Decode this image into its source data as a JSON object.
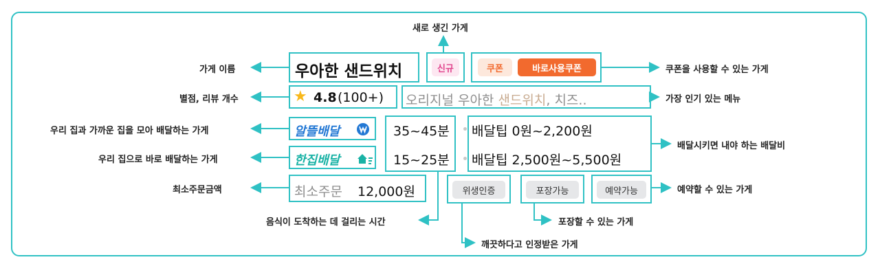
{
  "colors": {
    "accent": "#2fc1c4",
    "new_badge": "#e0428c",
    "coupon": "#f26a2e",
    "star": "#f8b81b",
    "logo_blue": "#2378d4",
    "logo_teal": "#19b2a5"
  },
  "card": {
    "store_name": "우아한 샌드위치",
    "badge_new": "신규",
    "coupon_label": "쿠폰",
    "coupon_instant": "바로사용쿠폰",
    "rating": "4.8",
    "review_count": "(100+)",
    "menu_plain": "오리지널 우아한 ",
    "menu_highlight": "샌드위치",
    "menu_rest": ", 치즈..",
    "logo_alddeul": "알뜰배달",
    "logo_hanjip": "한집배달",
    "time_alddeul": "35~45분",
    "time_hanjip": "15~25분",
    "tip_alddeul": "배달팁 0원~2,200원",
    "tip_hanjip": "배달팁 2,500원~5,500원",
    "min_order_label": "최소주문",
    "min_order_value": "12,000원",
    "tag_hygiene": "위생인증",
    "tag_pickup": "포장가능",
    "tag_reserve": "예약가능"
  },
  "icons": {
    "star": "star-icon",
    "alddeul": "won-circle-icon",
    "hanjip": "house-speed-icon"
  },
  "annotations": {
    "new_store": "새로 생긴 가게",
    "store_name": "가게 이름",
    "coupon": "쿠폰을 사용할 수 있는 가게",
    "rating": "별점, 리뷰 개수",
    "menu": "가장 인기 있는 메뉴",
    "alddeul": "우리 집과 가까운 집을 모아 배달하는 가게",
    "hanjip": "우리 집으로 바로 배달하는 가게",
    "delivery_fee": "배달시키면 내야 하는 배달비",
    "min_order": "최소주문금액",
    "reservation": "예약할 수 있는 가게",
    "delivery_time": "음식이 도착하는 데 걸리는 시간",
    "pickup": "포장할 수 있는 가게",
    "hygiene": "깨끗하다고 인정받은 가게"
  }
}
